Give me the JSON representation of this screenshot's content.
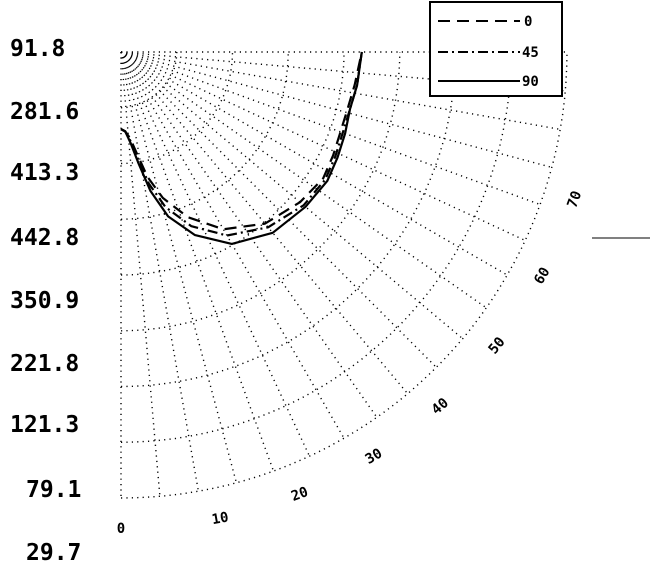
{
  "chart_data": {
    "type": "line",
    "title": "",
    "coordinate_system": "polar",
    "radial_axis_values": [
      "91.8",
      "281.6",
      "413.3",
      "442.8",
      "350.9",
      "221.8",
      "121.3",
      "79.1",
      "29.7"
    ],
    "angle_axis_ticks": [
      "0",
      "10",
      "20",
      "30",
      "40",
      "50",
      "60",
      "70"
    ],
    "angle_range": [
      0,
      90
    ],
    "grid": true,
    "legend_position": "top-right",
    "series": [
      {
        "name": "0",
        "dash": "dashed",
        "points": [
          [
            0,
            0.32
          ],
          [
            3,
            0.33
          ],
          [
            6,
            0.36
          ],
          [
            9,
            0.43
          ],
          [
            12,
            0.53
          ],
          [
            16,
            0.63
          ],
          [
            22,
            0.74
          ],
          [
            30,
            0.85
          ],
          [
            40,
            0.93
          ],
          [
            50,
            0.97
          ],
          [
            58,
            0.99
          ],
          [
            64,
            0.98
          ],
          [
            70,
            0.97
          ],
          [
            76,
            0.97
          ],
          [
            82,
            0.98
          ],
          [
            90,
            1.0
          ]
        ]
      },
      {
        "name": "45",
        "dash": "dash-dot",
        "points": [
          [
            0,
            0.32
          ],
          [
            3,
            0.33
          ],
          [
            6,
            0.37
          ],
          [
            9,
            0.45
          ],
          [
            12,
            0.56
          ],
          [
            16,
            0.67
          ],
          [
            22,
            0.78
          ],
          [
            30,
            0.88
          ],
          [
            40,
            0.95
          ],
          [
            50,
            0.99
          ],
          [
            58,
            1.0
          ],
          [
            64,
            0.99
          ],
          [
            70,
            0.98
          ],
          [
            76,
            0.98
          ],
          [
            82,
            0.99
          ],
          [
            90,
            1.0
          ]
        ]
      },
      {
        "name": "90",
        "dash": "solid",
        "points": [
          [
            0,
            0.32
          ],
          [
            3,
            0.33
          ],
          [
            6,
            0.38
          ],
          [
            9,
            0.47
          ],
          [
            12,
            0.59
          ],
          [
            16,
            0.71
          ],
          [
            22,
            0.82
          ],
          [
            30,
            0.92
          ],
          [
            40,
            0.98
          ],
          [
            50,
            1.0
          ],
          [
            58,
            1.01
          ],
          [
            64,
            1.0
          ],
          [
            70,
            0.99
          ],
          [
            76,
            0.98
          ],
          [
            82,
            0.99
          ],
          [
            90,
            1.0
          ]
        ]
      }
    ]
  }
}
